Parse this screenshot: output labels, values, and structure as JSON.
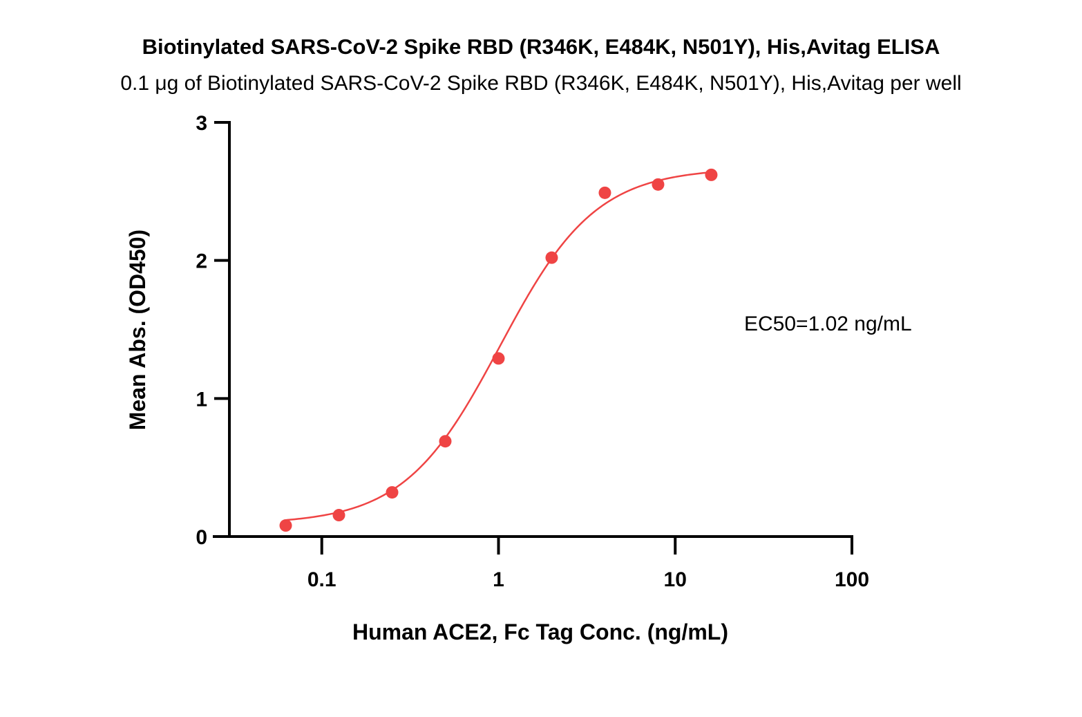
{
  "chart_data": {
    "type": "scatter",
    "title": "Biotinylated SARS-CoV-2 Spike RBD (R346K, E484K, N501Y), His,Avitag ELISA",
    "subtitle": "0.1 μg of Biotinylated SARS-CoV-2 Spike RBD (R346K, E484K, N501Y), His,Avitag per well",
    "xlabel": "Human ACE2, Fc Tag Conc. (ng/mL)",
    "ylabel": "Mean Abs. (OD450)",
    "x_scale": "log",
    "xlim": [
      0.03,
      100
    ],
    "ylim": [
      0,
      3
    ],
    "x_ticks": [
      {
        "value": 0.1,
        "label": "0.1"
      },
      {
        "value": 1,
        "label": "1"
      },
      {
        "value": 10,
        "label": "10"
      },
      {
        "value": 100,
        "label": "100"
      }
    ],
    "y_ticks": [
      {
        "value": 0,
        "label": "0"
      },
      {
        "value": 1,
        "label": "1"
      },
      {
        "value": 2,
        "label": "2"
      },
      {
        "value": 3,
        "label": "3"
      }
    ],
    "grid": false,
    "series": [
      {
        "color": "#ef4444",
        "points": [
          {
            "x": 0.0625,
            "y": 0.08
          },
          {
            "x": 0.125,
            "y": 0.155
          },
          {
            "x": 0.25,
            "y": 0.32
          },
          {
            "x": 0.5,
            "y": 0.69
          },
          {
            "x": 1,
            "y": 1.29
          },
          {
            "x": 2,
            "y": 2.02
          },
          {
            "x": 4,
            "y": 2.49
          },
          {
            "x": 8,
            "y": 2.55
          },
          {
            "x": 16,
            "y": 2.62
          }
        ],
        "fit": {
          "model": "4PL",
          "bottom": 0.09,
          "top": 2.67,
          "ec50": 1.02,
          "hill": 1.6,
          "x_range": [
            0.0625,
            16
          ]
        }
      }
    ],
    "annotations": [
      {
        "text": "EC50=1.02 ng/mL"
      }
    ]
  }
}
